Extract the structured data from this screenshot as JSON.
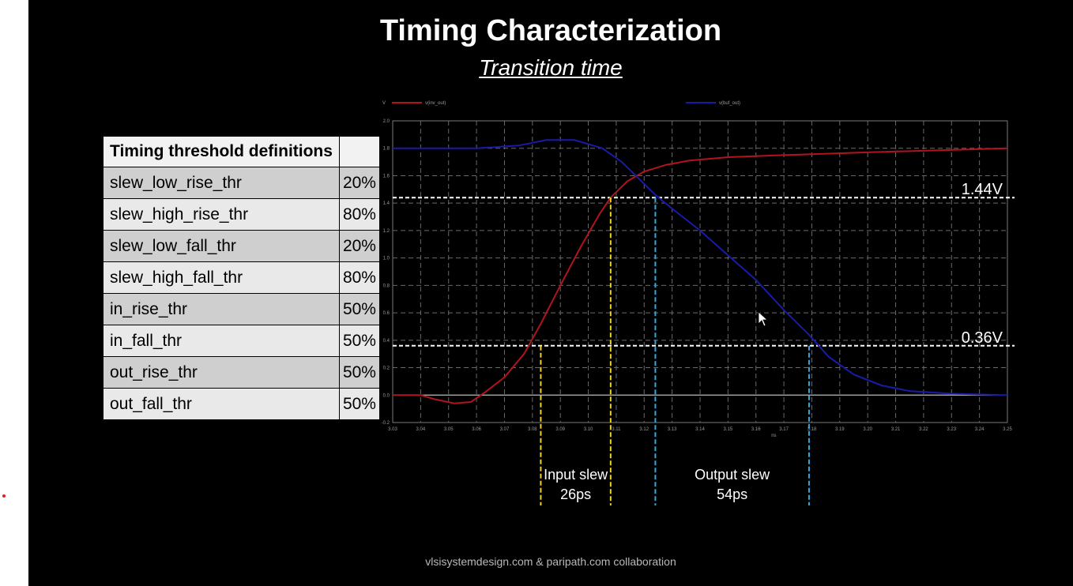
{
  "slide": {
    "title": "Timing Characterization",
    "subtitle": "Transition time",
    "footer": "vlsisystemdesign.com & paripath.com collaboration"
  },
  "threshold_table": {
    "header": "Timing threshold definitions",
    "rows": [
      {
        "name": "slew_low_rise_thr",
        "value": "20%"
      },
      {
        "name": "slew_high_rise_thr",
        "value": "80%"
      },
      {
        "name": "slew_low_fall_thr",
        "value": "20%"
      },
      {
        "name": "slew_high_fall_thr",
        "value": "80%"
      },
      {
        "name": "in_rise_thr",
        "value": "50%"
      },
      {
        "name": "in_fall_thr",
        "value": "50%"
      },
      {
        "name": "out_rise_thr",
        "value": "50%"
      },
      {
        "name": "out_fall_thr",
        "value": "50%"
      }
    ]
  },
  "annotations": {
    "high_level_label": "1.44V",
    "low_level_label": "0.36V",
    "input_slew_label": [
      "Input slew",
      "26ps"
    ],
    "output_slew_label": [
      "Output slew",
      "54ps"
    ],
    "input_slew_times": [
      3.083,
      3.108
    ],
    "output_slew_times": [
      3.124,
      3.179
    ],
    "high_level": 1.44,
    "low_level": 0.36
  },
  "chart_data": {
    "type": "line",
    "y_unit": "V",
    "x_unit": "ns",
    "xlim": [
      3.03,
      3.25
    ],
    "ylim": [
      -0.2,
      2.0
    ],
    "x_ticks": [
      "3.03",
      "3.04",
      "3.05",
      "3.06",
      "3.07",
      "3.08",
      "3.09",
      "3.10",
      "3.11",
      "3.12",
      "3.13",
      "3.14",
      "3.15",
      "3.16",
      "3.17",
      "3.18",
      "3.19",
      "3.20",
      "3.21",
      "3.22",
      "3.23",
      "3.24",
      "3.25"
    ],
    "y_ticks": [
      "-0.2",
      "0.0",
      "0.2",
      "0.4",
      "0.6",
      "0.8",
      "1.0",
      "1.2",
      "1.4",
      "1.6",
      "1.8",
      "2.0"
    ],
    "grid": true,
    "legend_placement": "top",
    "colors": {
      "red": "#b0141c",
      "blue": "#1a1aa8",
      "yellow": "#f0d020",
      "cyan": "#30a8e0"
    },
    "series": [
      {
        "name": "v(inv_out)",
        "color": "#b0141c",
        "points": [
          [
            3.03,
            0.0
          ],
          [
            3.04,
            0.0
          ],
          [
            3.045,
            -0.03
          ],
          [
            3.052,
            -0.06
          ],
          [
            3.058,
            -0.05
          ],
          [
            3.063,
            0.02
          ],
          [
            3.07,
            0.13
          ],
          [
            3.077,
            0.3
          ],
          [
            3.083,
            0.52
          ],
          [
            3.09,
            0.8
          ],
          [
            3.097,
            1.07
          ],
          [
            3.104,
            1.32
          ],
          [
            3.108,
            1.44
          ],
          [
            3.114,
            1.56
          ],
          [
            3.12,
            1.63
          ],
          [
            3.128,
            1.68
          ],
          [
            3.136,
            1.71
          ],
          [
            3.15,
            1.735
          ],
          [
            3.17,
            1.75
          ],
          [
            3.2,
            1.77
          ],
          [
            3.25,
            1.8
          ]
        ]
      },
      {
        "name": "v(buf_out)",
        "color": "#1a1aa8",
        "points": [
          [
            3.03,
            1.8
          ],
          [
            3.06,
            1.8
          ],
          [
            3.075,
            1.82
          ],
          [
            3.085,
            1.86
          ],
          [
            3.095,
            1.86
          ],
          [
            3.105,
            1.8
          ],
          [
            3.112,
            1.7
          ],
          [
            3.118,
            1.58
          ],
          [
            3.124,
            1.46
          ],
          [
            3.13,
            1.36
          ],
          [
            3.14,
            1.2
          ],
          [
            3.15,
            1.02
          ],
          [
            3.16,
            0.84
          ],
          [
            3.17,
            0.62
          ],
          [
            3.179,
            0.44
          ],
          [
            3.186,
            0.28
          ],
          [
            3.195,
            0.15
          ],
          [
            3.205,
            0.07
          ],
          [
            3.215,
            0.03
          ],
          [
            3.23,
            0.01
          ],
          [
            3.25,
            0.0
          ]
        ]
      }
    ]
  }
}
